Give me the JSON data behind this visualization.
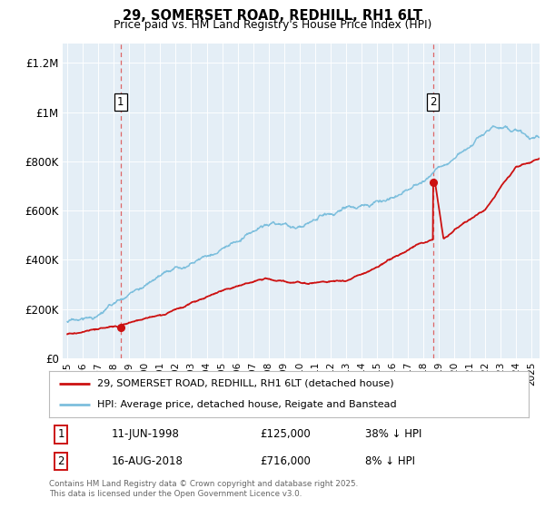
{
  "title": "29, SOMERSET ROAD, REDHILL, RH1 6LT",
  "subtitle": "Price paid vs. HM Land Registry's House Price Index (HPI)",
  "ylabel_ticks": [
    "£0",
    "£200K",
    "£400K",
    "£600K",
    "£800K",
    "£1M",
    "£1.2M"
  ],
  "ytick_values": [
    0,
    200000,
    400000,
    600000,
    800000,
    1000000,
    1200000
  ],
  "ylim": [
    0,
    1280000
  ],
  "hpi_color": "#7dbfdd",
  "price_color": "#cc1111",
  "dashed_color": "#dd6666",
  "background_color": "#e4eef6",
  "legend_entry1": "29, SOMERSET ROAD, REDHILL, RH1 6LT (detached house)",
  "legend_entry2": "HPI: Average price, detached house, Reigate and Banstead",
  "point1_label": "1",
  "point1_date": "11-JUN-1998",
  "point1_price": "£125,000",
  "point1_hpi": "38% ↓ HPI",
  "point1_year": 1998.45,
  "point1_value": 125000,
  "point2_label": "2",
  "point2_date": "16-AUG-2018",
  "point2_price": "£716,000",
  "point2_hpi": "8% ↓ HPI",
  "point2_year": 2018.62,
  "point2_value": 716000,
  "footnote": "Contains HM Land Registry data © Crown copyright and database right 2025.\nThis data is licensed under the Open Government Licence v3.0.",
  "xmin": 1994.7,
  "xmax": 2025.5
}
